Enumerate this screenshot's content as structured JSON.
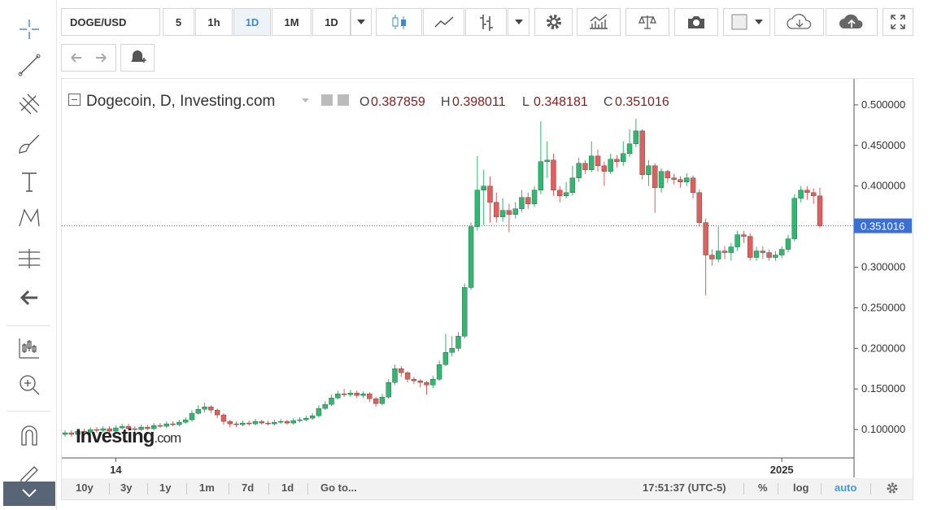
{
  "toolbar": {
    "symbol": "DOGE/USD",
    "intervals": [
      "5",
      "1h",
      "1D",
      "1M",
      "1D"
    ]
  },
  "legend": {
    "title": "Dogecoin, D, Investing.com",
    "ohlc_labels": [
      "O",
      "H",
      "L",
      "C"
    ]
  },
  "watermark": {
    "brand": "Investing",
    "suffix": ".com"
  },
  "bottom_bar": {
    "ranges": [
      "10y",
      "3y",
      "1y",
      "1m",
      "7d",
      "1d"
    ],
    "goto": "Go to...",
    "time": "17:51:37 (UTC-5)",
    "options": [
      "%",
      "log",
      "auto"
    ]
  },
  "chart_data": {
    "type": "candlestick",
    "up_color": "#2eb872",
    "down_color": "#e35d5d",
    "last_line_color": "#3b6fd8",
    "ylim": [
      0.065,
      0.532
    ],
    "yticks": [
      {
        "value": 0.1,
        "label": "0.100000"
      },
      {
        "value": 0.15,
        "label": "0.150000"
      },
      {
        "value": 0.2,
        "label": "0.200000"
      },
      {
        "value": 0.25,
        "label": "0.250000"
      },
      {
        "value": 0.3,
        "label": "0.300000"
      },
      {
        "value": 0.35,
        "label": "0.350000"
      },
      {
        "value": 0.4,
        "label": "0.400000"
      },
      {
        "value": 0.45,
        "label": "0.450000"
      },
      {
        "value": 0.5,
        "label": "0.500000"
      }
    ],
    "categories": [
      null,
      null,
      null,
      null,
      null,
      null,
      null,
      null,
      "14",
      null,
      null,
      null,
      null,
      null,
      null,
      null,
      null,
      null,
      null,
      null,
      null,
      null,
      null,
      null,
      null,
      null,
      null,
      null,
      null,
      null,
      null,
      null,
      null,
      null,
      null,
      null,
      null,
      null,
      null,
      null,
      null,
      null,
      null,
      null,
      null,
      null,
      null,
      null,
      null,
      null,
      null,
      null,
      null,
      null,
      null,
      null,
      null,
      null,
      null,
      null,
      null,
      null,
      null,
      null,
      null,
      null,
      null,
      null,
      null,
      null,
      null,
      null,
      null,
      null,
      null,
      null,
      null,
      null,
      null,
      null,
      null,
      null,
      null,
      null,
      null,
      null,
      null,
      null,
      null,
      null,
      null,
      null,
      null,
      null,
      null,
      null,
      null,
      null,
      null,
      null,
      null,
      null,
      null,
      null,
      null,
      null,
      null,
      null,
      null,
      null,
      null,
      null,
      null,
      "2025",
      null,
      null,
      null,
      null,
      null,
      null
    ],
    "open": [
      0.094,
      0.096,
      0.094,
      0.098,
      0.097,
      0.1,
      0.099,
      0.101,
      0.098,
      0.102,
      0.104,
      0.101,
      0.1,
      0.103,
      0.101,
      0.105,
      0.104,
      0.107,
      0.106,
      0.109,
      0.112,
      0.12,
      0.125,
      0.128,
      0.124,
      0.118,
      0.11,
      0.107,
      0.106,
      0.108,
      0.107,
      0.11,
      0.108,
      0.107,
      0.109,
      0.11,
      0.108,
      0.111,
      0.112,
      0.114,
      0.117,
      0.126,
      0.131,
      0.139,
      0.144,
      0.143,
      0.145,
      0.142,
      0.144,
      0.138,
      0.132,
      0.14,
      0.158,
      0.175,
      0.17,
      0.162,
      0.16,
      0.158,
      0.155,
      0.162,
      0.18,
      0.195,
      0.2,
      0.215,
      0.275,
      0.35,
      0.395,
      0.4,
      0.38,
      0.362,
      0.37,
      0.365,
      0.372,
      0.386,
      0.378,
      0.395,
      0.43,
      0.432,
      0.395,
      0.388,
      0.392,
      0.41,
      0.428,
      0.42,
      0.437,
      0.425,
      0.418,
      0.433,
      0.43,
      0.44,
      0.452,
      0.468,
      0.414,
      0.425,
      0.398,
      0.418,
      0.41,
      0.408,
      0.405,
      0.41,
      0.392,
      0.355,
      0.315,
      0.31,
      0.32,
      0.318,
      0.325,
      0.34,
      0.338,
      0.312,
      0.32,
      0.318,
      0.312,
      0.315,
      0.322,
      0.335,
      0.385,
      0.395,
      0.392,
      0.387859
    ],
    "high": [
      0.099,
      0.099,
      0.101,
      0.101,
      0.103,
      0.103,
      0.104,
      0.104,
      0.105,
      0.107,
      0.107,
      0.104,
      0.106,
      0.106,
      0.108,
      0.108,
      0.11,
      0.11,
      0.112,
      0.115,
      0.124,
      0.13,
      0.133,
      0.13,
      0.126,
      0.12,
      0.112,
      0.11,
      0.111,
      0.111,
      0.113,
      0.112,
      0.111,
      0.112,
      0.113,
      0.112,
      0.114,
      0.115,
      0.117,
      0.12,
      0.13,
      0.135,
      0.143,
      0.148,
      0.15,
      0.149,
      0.148,
      0.147,
      0.146,
      0.14,
      0.144,
      0.162,
      0.18,
      0.178,
      0.172,
      0.165,
      0.162,
      0.16,
      0.166,
      0.185,
      0.218,
      0.215,
      0.22,
      0.28,
      0.355,
      0.437,
      0.42,
      0.412,
      0.392,
      0.385,
      0.378,
      0.38,
      0.395,
      0.392,
      0.4,
      0.48,
      0.455,
      0.44,
      0.4,
      0.405,
      0.425,
      0.435,
      0.432,
      0.455,
      0.445,
      0.43,
      0.44,
      0.438,
      0.455,
      0.47,
      0.483,
      0.47,
      0.432,
      0.428,
      0.422,
      0.42,
      0.415,
      0.412,
      0.416,
      0.413,
      0.396,
      0.36,
      0.322,
      0.35,
      0.326,
      0.33,
      0.345,
      0.345,
      0.342,
      0.325,
      0.326,
      0.322,
      0.32,
      0.326,
      0.34,
      0.39,
      0.4,
      0.4,
      0.397,
      0.398011
    ],
    "low": [
      0.091,
      0.091,
      0.092,
      0.095,
      0.095,
      0.096,
      0.097,
      0.096,
      0.096,
      0.1,
      0.099,
      0.097,
      0.098,
      0.099,
      0.099,
      0.102,
      0.102,
      0.104,
      0.104,
      0.107,
      0.11,
      0.118,
      0.121,
      0.12,
      0.114,
      0.106,
      0.103,
      0.103,
      0.104,
      0.105,
      0.105,
      0.106,
      0.105,
      0.105,
      0.107,
      0.106,
      0.106,
      0.109,
      0.11,
      0.112,
      0.115,
      0.124,
      0.129,
      0.137,
      0.14,
      0.14,
      0.139,
      0.139,
      0.134,
      0.128,
      0.13,
      0.138,
      0.155,
      0.165,
      0.158,
      0.156,
      0.152,
      0.143,
      0.151,
      0.16,
      0.178,
      0.19,
      0.196,
      0.212,
      0.272,
      0.345,
      0.352,
      0.355,
      0.355,
      0.356,
      0.343,
      0.36,
      0.368,
      0.372,
      0.374,
      0.39,
      0.41,
      0.388,
      0.38,
      0.385,
      0.388,
      0.405,
      0.415,
      0.417,
      0.418,
      0.4,
      0.415,
      0.423,
      0.425,
      0.436,
      0.448,
      0.408,
      0.4,
      0.367,
      0.392,
      0.404,
      0.402,
      0.398,
      0.4,
      0.385,
      0.35,
      0.265,
      0.302,
      0.306,
      0.31,
      0.308,
      0.32,
      0.33,
      0.308,
      0.308,
      0.31,
      0.308,
      0.308,
      0.311,
      0.318,
      0.332,
      0.38,
      0.383,
      0.378,
      0.348181
    ],
    "close": [
      0.096,
      0.094,
      0.098,
      0.097,
      0.1,
      0.099,
      0.101,
      0.098,
      0.102,
      0.104,
      0.101,
      0.1,
      0.103,
      0.101,
      0.105,
      0.104,
      0.107,
      0.106,
      0.109,
      0.112,
      0.12,
      0.125,
      0.128,
      0.124,
      0.118,
      0.11,
      0.107,
      0.106,
      0.108,
      0.107,
      0.11,
      0.108,
      0.107,
      0.109,
      0.11,
      0.108,
      0.111,
      0.112,
      0.114,
      0.117,
      0.126,
      0.131,
      0.139,
      0.144,
      0.143,
      0.145,
      0.142,
      0.144,
      0.138,
      0.132,
      0.14,
      0.158,
      0.175,
      0.17,
      0.162,
      0.16,
      0.158,
      0.155,
      0.162,
      0.18,
      0.195,
      0.2,
      0.215,
      0.275,
      0.35,
      0.395,
      0.4,
      0.38,
      0.362,
      0.37,
      0.365,
      0.372,
      0.386,
      0.378,
      0.395,
      0.43,
      0.432,
      0.395,
      0.388,
      0.392,
      0.41,
      0.428,
      0.42,
      0.437,
      0.425,
      0.418,
      0.433,
      0.43,
      0.44,
      0.452,
      0.468,
      0.414,
      0.425,
      0.398,
      0.418,
      0.41,
      0.408,
      0.405,
      0.41,
      0.392,
      0.355,
      0.315,
      0.31,
      0.32,
      0.318,
      0.325,
      0.34,
      0.338,
      0.312,
      0.32,
      0.318,
      0.312,
      0.315,
      0.322,
      0.335,
      0.385,
      0.395,
      0.392,
      0.388,
      0.351016
    ]
  }
}
